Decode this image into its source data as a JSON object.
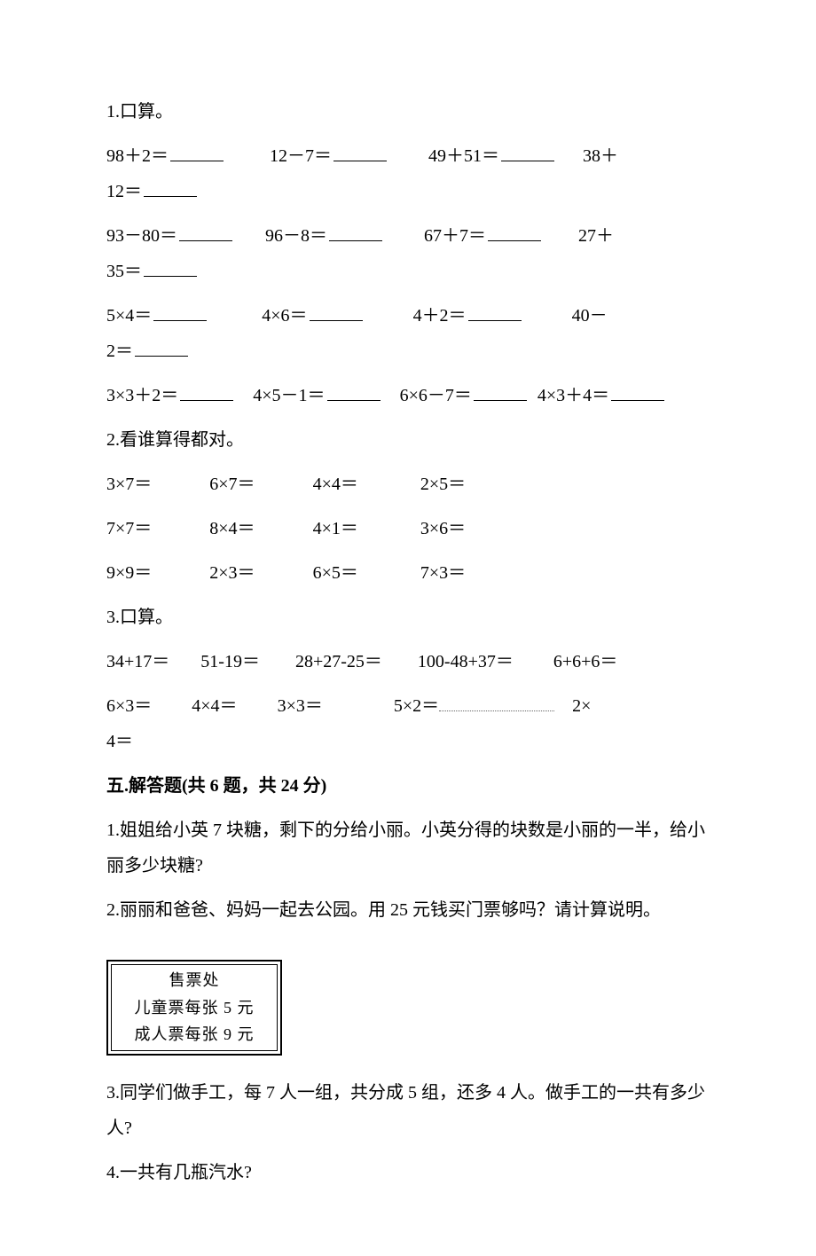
{
  "q1": {
    "title": "1.口算。",
    "rows": [
      [
        {
          "expr": "98＋2＝",
          "blank": true,
          "pad": 10
        },
        {
          "expr": "12－7＝",
          "blank": true,
          "pad": 9
        },
        {
          "expr": "49＋51＝",
          "blank": true,
          "pad": 6
        },
        {
          "expr": "38＋",
          "blank": false,
          "pad": 0
        }
      ],
      [
        {
          "expr": "12＝",
          "blank": true,
          "pad": 0
        }
      ],
      [
        {
          "expr": "93－80＝",
          "blank": true,
          "pad": 7
        },
        {
          "expr": "96－8＝",
          "blank": true,
          "pad": 9
        },
        {
          "expr": "67＋7＝",
          "blank": true,
          "pad": 8
        },
        {
          "expr": "27＋",
          "blank": false,
          "pad": 0
        }
      ],
      [
        {
          "expr": "35＝",
          "blank": true,
          "pad": 0
        }
      ],
      [
        {
          "expr": "5×4＝",
          "blank": true,
          "pad": 12
        },
        {
          "expr": "4×6＝",
          "blank": true,
          "pad": 11
        },
        {
          "expr": "4＋2＝",
          "blank": true,
          "pad": 11
        },
        {
          "expr": "40－",
          "blank": false,
          "pad": 0
        }
      ],
      [
        {
          "expr": "2＝",
          "blank": true,
          "pad": 0
        }
      ],
      [
        {
          "expr": "3×3＋2＝",
          "blank": true,
          "pad": 4
        },
        {
          "expr": "4×5－1＝",
          "blank": true,
          "pad": 4
        },
        {
          "expr": "6×6－7＝",
          "blank": true,
          "pad": 2
        },
        {
          "expr": "4×3＋4＝",
          "blank": true,
          "pad": 0
        }
      ]
    ]
  },
  "q2": {
    "title": "2.看谁算得都对。",
    "rows": [
      [
        "3×7＝",
        "6×7＝",
        "4×4＝",
        "2×5＝"
      ],
      [
        "7×7＝",
        "8×4＝",
        "4×1＝",
        "3×6＝"
      ],
      [
        "9×9＝",
        "2×3＝",
        "6×5＝",
        "7×3＝"
      ]
    ],
    "spacings": [
      0,
      13,
      13,
      14
    ]
  },
  "q3": {
    "title": "3.口算。",
    "row1": [
      "34+17＝",
      "51-19＝",
      "28+27-25＝",
      "100-48+37＝",
      "6+6+6＝"
    ],
    "row1_spacings": [
      0,
      7,
      8,
      8,
      9
    ],
    "row2_parts": [
      {
        "text": "6×3＝",
        "pad_before": 0
      },
      {
        "text": "4×4＝",
        "pad_before": 9
      },
      {
        "text": "3×3＝",
        "pad_before": 9
      },
      {
        "text": "5×2＝",
        "pad_before": 16,
        "dotted_after": true
      },
      {
        "text": "2×",
        "pad_before": 4
      }
    ],
    "row2_tail": "4＝"
  },
  "section5": {
    "heading": "五.解答题(共 6 题，共 24 分)",
    "q1_l1": "1.姐姐给小英 7 块糖，剩下的分给小丽。小英分得的块数是小丽的一半，给小",
    "q1_l2": "丽多少块糖?",
    "q2": "2.丽丽和爸爸、妈妈一起去公园。用 25 元钱买门票够吗？请计算说明。",
    "ticket": {
      "l1": "售票处",
      "l2": "儿童票每张 5 元",
      "l3": "成人票每张 9 元"
    },
    "q3_l1": "3.同学们做手工，每 7 人一组，共分成 5 组，还多 4 人。做手工的一共有多少",
    "q3_l2": "人?",
    "q4": "4.一共有几瓶汽水?"
  }
}
